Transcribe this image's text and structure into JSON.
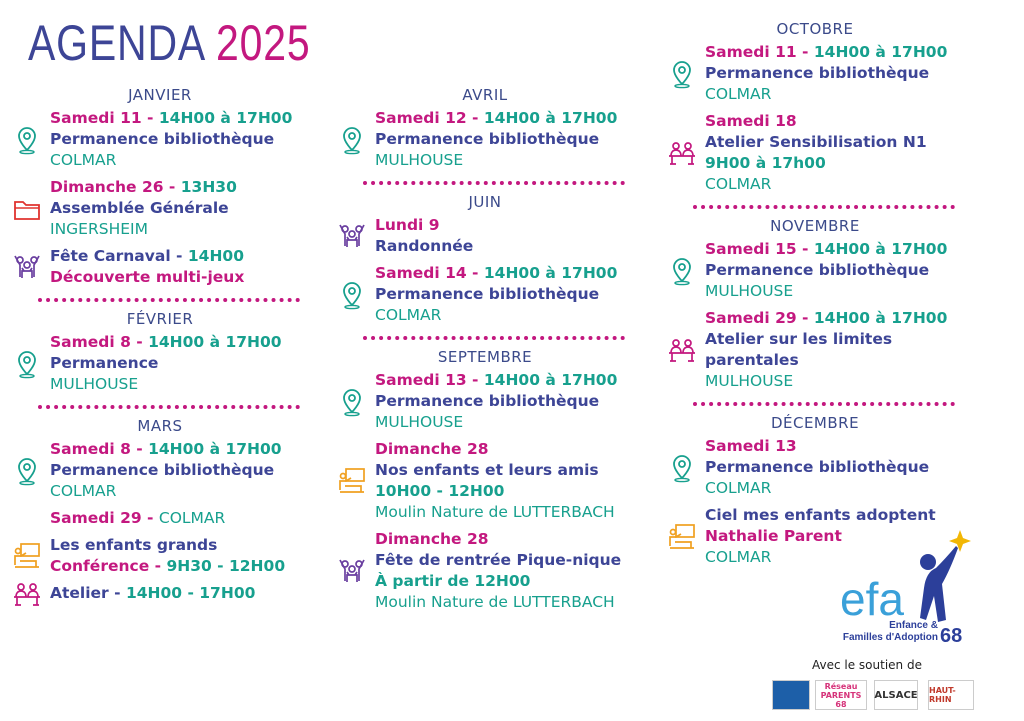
{
  "header": {
    "title": "AGENDA",
    "year": "2025"
  },
  "columns": [
    [
      {
        "month": "JANVIER",
        "events": [
          {
            "icon": "pin",
            "lines": [
              [
                {
                  "text": "Samedi 11 - ",
                  "style": "p"
                },
                {
                  "text": "14H00 à 17H00",
                  "style": "t"
                }
              ],
              [
                {
                  "text": "Permanence bibliothèque",
                  "style": "n"
                }
              ],
              [
                {
                  "text": "COLMAR",
                  "style": "pl"
                }
              ]
            ]
          },
          {
            "icon": "folder",
            "lines": [
              [
                {
                  "text": "Dimanche 26 - ",
                  "style": "p"
                },
                {
                  "text": "13H30",
                  "style": "t"
                }
              ],
              [
                {
                  "text": "Assemblée Générale",
                  "style": "n"
                }
              ],
              [
                {
                  "text": "INGERSHEIM",
                  "style": "pl"
                }
              ]
            ]
          },
          {
            "icon": "people",
            "lines": [
              [
                {
                  "text": "Fête Carnaval - ",
                  "style": "n"
                },
                {
                  "text": "14H00",
                  "style": "t"
                }
              ],
              [
                {
                  "text": "Découverte multi-jeux",
                  "style": "p"
                }
              ]
            ]
          }
        ]
      },
      {
        "month": "FÉVRIER",
        "events": [
          {
            "icon": "pin",
            "lines": [
              [
                {
                  "text": "Samedi 8 - ",
                  "style": "p"
                },
                {
                  "text": "14H00 à 17H00",
                  "style": "t"
                }
              ],
              [
                {
                  "text": "Permanence",
                  "style": "n"
                }
              ],
              [
                {
                  "text": "MULHOUSE",
                  "style": "pl"
                }
              ]
            ]
          }
        ]
      },
      {
        "month": "MARS",
        "events": [
          {
            "icon": "pin",
            "lines": [
              [
                {
                  "text": "Samedi 8 - ",
                  "style": "p"
                },
                {
                  "text": "14H00 à 17H00",
                  "style": "t"
                }
              ],
              [
                {
                  "text": "Permanence bibliothèque",
                  "style": "n"
                }
              ],
              [
                {
                  "text": "COLMAR",
                  "style": "pl"
                }
              ]
            ]
          },
          {
            "icon": null,
            "lines": [
              [
                {
                  "text": "Samedi 29 - ",
                  "style": "p"
                },
                {
                  "text": "COLMAR",
                  "style": "pl"
                }
              ]
            ]
          },
          {
            "icon": "talk",
            "lines": [
              [
                {
                  "text": "Les enfants grands",
                  "style": "n"
                }
              ],
              [
                {
                  "text": "Conférence - ",
                  "style": "p"
                },
                {
                  "text": "9H30 - 12H00",
                  "style": "t"
                }
              ]
            ]
          },
          {
            "icon": "table",
            "lines": [
              [
                {
                  "text": "Atelier - ",
                  "style": "n"
                },
                {
                  "text": "14H00 - 17H00",
                  "style": "t"
                }
              ]
            ]
          }
        ]
      }
    ],
    [
      {
        "month": "AVRIL",
        "events": [
          {
            "icon": "pin",
            "lines": [
              [
                {
                  "text": "Samedi 12 - ",
                  "style": "p"
                },
                {
                  "text": "14H00 à 17H00",
                  "style": "t"
                }
              ],
              [
                {
                  "text": "Permanence bibliothèque",
                  "style": "n"
                }
              ],
              [
                {
                  "text": "MULHOUSE",
                  "style": "pl"
                }
              ]
            ]
          }
        ]
      },
      {
        "month": "JUIN",
        "events": [
          {
            "icon": "people",
            "lines": [
              [
                {
                  "text": "Lundi 9",
                  "style": "p"
                }
              ],
              [
                {
                  "text": "Randonnée",
                  "style": "n"
                }
              ]
            ]
          },
          {
            "icon": "pin",
            "lines": [
              [
                {
                  "text": "Samedi 14 - ",
                  "style": "p"
                },
                {
                  "text": "14H00 à 17H00",
                  "style": "t"
                }
              ],
              [
                {
                  "text": "Permanence bibliothèque",
                  "style": "n"
                }
              ],
              [
                {
                  "text": "COLMAR",
                  "style": "pl"
                }
              ]
            ]
          }
        ]
      },
      {
        "month": "SEPTEMBRE",
        "events": [
          {
            "icon": "pin",
            "lines": [
              [
                {
                  "text": "Samedi 13 - ",
                  "style": "p"
                },
                {
                  "text": "14H00 à 17H00",
                  "style": "t"
                }
              ],
              [
                {
                  "text": "Permanence bibliothèque",
                  "style": "n"
                }
              ],
              [
                {
                  "text": "MULHOUSE",
                  "style": "pl"
                }
              ]
            ]
          },
          {
            "icon": "talk",
            "lines": [
              [
                {
                  "text": "Dimanche 28",
                  "style": "p"
                }
              ],
              [
                {
                  "text": "Nos enfants et leurs amis",
                  "style": "n"
                }
              ],
              [
                {
                  "text": "10H00 - 12H00",
                  "style": "t"
                }
              ],
              [
                {
                  "text": "Moulin Nature de LUTTERBACH",
                  "style": "pl"
                }
              ]
            ]
          },
          {
            "icon": "people",
            "lines": [
              [
                {
                  "text": "Dimanche 28",
                  "style": "p"
                }
              ],
              [
                {
                  "text": "Fête de rentrée Pique-nique",
                  "style": "n"
                }
              ],
              [
                {
                  "text": "À partir de 12H00",
                  "style": "t"
                }
              ],
              [
                {
                  "text": "Moulin Nature de LUTTERBACH",
                  "style": "pl"
                }
              ]
            ]
          }
        ]
      }
    ],
    [
      {
        "month": "OCTOBRE",
        "events": [
          {
            "icon": "pin",
            "lines": [
              [
                {
                  "text": "Samedi 11 - ",
                  "style": "p"
                },
                {
                  "text": "14H00 à 17H00",
                  "style": "t"
                }
              ],
              [
                {
                  "text": "Permanence bibliothèque",
                  "style": "n"
                }
              ],
              [
                {
                  "text": "COLMAR",
                  "style": "pl"
                }
              ]
            ]
          },
          {
            "icon": "table",
            "lines": [
              [
                {
                  "text": "Samedi 18",
                  "style": "p"
                }
              ],
              [
                {
                  "text": "Atelier Sensibilisation N1",
                  "style": "n"
                }
              ],
              [
                {
                  "text": "9H00 à 17h00",
                  "style": "t"
                }
              ],
              [
                {
                  "text": "COLMAR",
                  "style": "pl"
                }
              ]
            ]
          }
        ]
      },
      {
        "month": "NOVEMBRE",
        "events": [
          {
            "icon": "pin",
            "lines": [
              [
                {
                  "text": "Samedi 15 - ",
                  "style": "p"
                },
                {
                  "text": "14H00 à 17H00",
                  "style": "t"
                }
              ],
              [
                {
                  "text": "Permanence bibliothèque",
                  "style": "n"
                }
              ],
              [
                {
                  "text": "MULHOUSE",
                  "style": "pl"
                }
              ]
            ]
          },
          {
            "icon": "table",
            "lines": [
              [
                {
                  "text": "Samedi 29 - ",
                  "style": "p"
                },
                {
                  "text": "14H00 à 17H00",
                  "style": "t"
                }
              ],
              [
                {
                  "text": "Atelier sur les limites",
                  "style": "n"
                }
              ],
              [
                {
                  "text": "parentales",
                  "style": "n"
                }
              ],
              [
                {
                  "text": "MULHOUSE",
                  "style": "pl"
                }
              ]
            ]
          }
        ]
      },
      {
        "month": "DÉCEMBRE",
        "events": [
          {
            "icon": "pin",
            "lines": [
              [
                {
                  "text": "Samedi 13",
                  "style": "p"
                }
              ],
              [
                {
                  "text": "Permanence bibliothèque",
                  "style": "n"
                }
              ],
              [
                {
                  "text": "COLMAR",
                  "style": "pl"
                }
              ]
            ]
          },
          {
            "icon": "talk",
            "lines": [
              [
                {
                  "text": "Ciel mes enfants adoptent",
                  "style": "n"
                }
              ],
              [
                {
                  "text": "Nathalie Parent",
                  "style": "p"
                }
              ],
              [
                {
                  "text": "COLMAR",
                  "style": "pl"
                }
              ]
            ]
          }
        ]
      }
    ]
  ],
  "footer": {
    "logo": "efa",
    "org_line1": "Enfance &",
    "org_line2": "Familles d'Adoption",
    "org_number": "68",
    "support": "Avec le soutien de",
    "partners": [
      "Réseau PARENTS 68",
      "ALSACE",
      "HAUT-RHIN"
    ]
  }
}
